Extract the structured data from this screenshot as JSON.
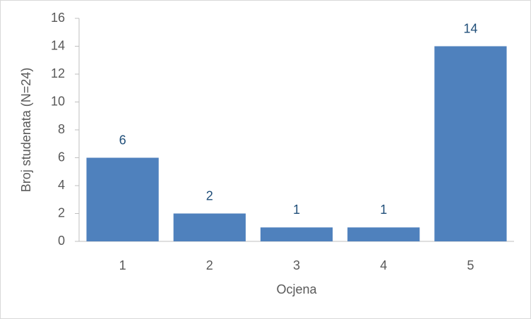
{
  "chart_data": {
    "type": "bar",
    "categories": [
      "1",
      "2",
      "3",
      "4",
      "5"
    ],
    "values": [
      6,
      2,
      1,
      1,
      14
    ],
    "color": "#4f81bd",
    "value_label_color": "#1f4e79",
    "xlabel": "Ocjena",
    "ylabel": "Broj studenata (N=24)",
    "ylim": [
      0,
      16
    ],
    "yticks": [
      0,
      2,
      4,
      6,
      8,
      10,
      12,
      14,
      16
    ],
    "grid": false,
    "data_labels": true
  }
}
